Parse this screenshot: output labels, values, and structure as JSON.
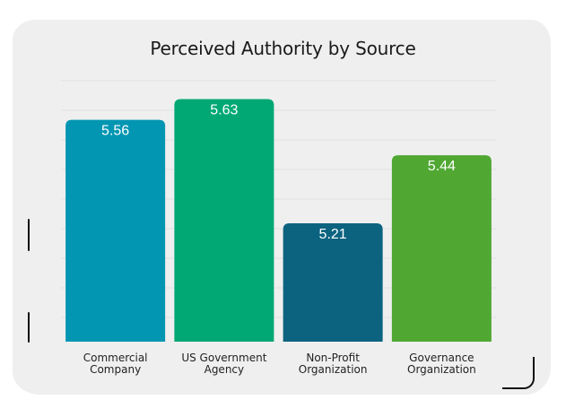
{
  "chart_data": {
    "type": "bar",
    "title": "Perceived Authority by Source",
    "xlabel": "",
    "ylabel": "",
    "categories": [
      [
        "Commercial",
        "Company"
      ],
      [
        "US Government",
        "Agency"
      ],
      [
        "Non-Profit",
        "Organization"
      ],
      [
        "Governance",
        "Organization"
      ]
    ],
    "values": [
      5.56,
      5.63,
      5.21,
      5.44
    ],
    "value_labels": [
      "5.56",
      "5.63",
      "5.21",
      "5.44"
    ],
    "colors": [
      "#0396b3",
      "#02a874",
      "#0c6380",
      "#50a833"
    ],
    "ylim": [
      4.81,
      5.68
    ],
    "grid": true,
    "legend": "none"
  }
}
